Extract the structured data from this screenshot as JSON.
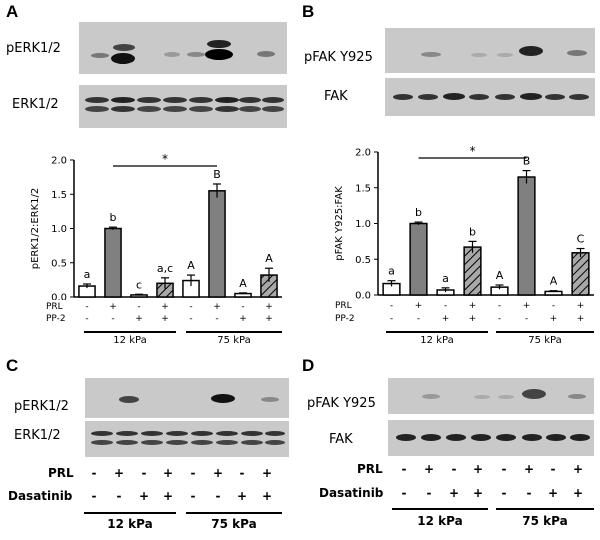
{
  "panels": {
    "A": {
      "letter": "A",
      "blots": [
        "pERK1/2",
        "ERK1/2"
      ]
    },
    "B": {
      "letter": "B",
      "blots": [
        "pFAK Y925",
        "FAK"
      ]
    },
    "C": {
      "letter": "C",
      "blots": [
        "pERK1/2",
        "ERK1/2"
      ]
    },
    "D": {
      "letter": "D",
      "blots": [
        "pFAK Y925",
        "FAK"
      ]
    }
  },
  "conditions_AB": {
    "row1_label": "PRL",
    "row1": [
      "-",
      "+",
      "-",
      "+",
      "-",
      "+",
      "-",
      "+"
    ],
    "row2_label": "PP-2",
    "row2": [
      "-",
      "-",
      "+",
      "+",
      "-",
      "-",
      "+",
      "+"
    ],
    "groups": [
      "12 kPa",
      "75 kPa"
    ]
  },
  "conditions_CD": {
    "row1_label": "PRL",
    "row1": [
      "-",
      "+",
      "-",
      "+",
      "-",
      "+",
      "-",
      "+"
    ],
    "row2_label": "Dasatinib",
    "row2": [
      "-",
      "-",
      "+",
      "+",
      "-",
      "-",
      "+",
      "+"
    ],
    "groups": [
      "12 kPa",
      "75 kPa"
    ]
  },
  "colors": {
    "white_bar": "#ffffff",
    "gray_bar": "#808080",
    "hatched_bar": "#a8a8a8",
    "blot_bg": "#c9c9c9",
    "band": "#1a1a1a"
  },
  "chart_data": [
    {
      "type": "bar",
      "panel": "A",
      "ylabel": "pERK1/2:ERK1/2",
      "ylim": [
        0,
        2.0
      ],
      "yticks": [
        "0.0",
        "0.5",
        "1.0",
        "1.5",
        "2.0"
      ],
      "bars": [
        {
          "value": 0.16,
          "err": 0.03,
          "letter": "a",
          "fill": "white"
        },
        {
          "value": 1.0,
          "err": 0.02,
          "letter": "b",
          "fill": "gray"
        },
        {
          "value": 0.03,
          "err": 0.01,
          "letter": "c",
          "fill": "white"
        },
        {
          "value": 0.2,
          "err": 0.08,
          "letter": "a,c",
          "fill": "hatched"
        },
        {
          "value": 0.24,
          "err": 0.08,
          "letter": "A",
          "fill": "white"
        },
        {
          "value": 1.55,
          "err": 0.1,
          "letter": "B",
          "fill": "gray"
        },
        {
          "value": 0.05,
          "err": 0.01,
          "letter": "A",
          "fill": "white"
        },
        {
          "value": 0.32,
          "err": 0.1,
          "letter": "A",
          "fill": "hatched"
        }
      ],
      "significance": {
        "from_bar": 1,
        "to_bar": 5,
        "mark": "*"
      }
    },
    {
      "type": "bar",
      "panel": "B",
      "ylabel": "pFAK Y925:FAK",
      "ylim": [
        0,
        2.0
      ],
      "yticks": [
        "0.0",
        "0.5",
        "1.0",
        "1.5",
        "2.0"
      ],
      "bars": [
        {
          "value": 0.16,
          "err": 0.04,
          "letter": "a",
          "fill": "white"
        },
        {
          "value": 1.0,
          "err": 0.02,
          "letter": "b",
          "fill": "gray"
        },
        {
          "value": 0.07,
          "err": 0.03,
          "letter": "a",
          "fill": "white"
        },
        {
          "value": 0.67,
          "err": 0.08,
          "letter": "b",
          "fill": "hatched"
        },
        {
          "value": 0.11,
          "err": 0.03,
          "letter": "A",
          "fill": "white"
        },
        {
          "value": 1.65,
          "err": 0.09,
          "letter": "B",
          "fill": "gray"
        },
        {
          "value": 0.05,
          "err": 0.01,
          "letter": "A",
          "fill": "white"
        },
        {
          "value": 0.59,
          "err": 0.06,
          "letter": "C",
          "fill": "hatched"
        }
      ],
      "significance": {
        "from_bar": 1,
        "to_bar": 5,
        "mark": "*"
      }
    }
  ]
}
